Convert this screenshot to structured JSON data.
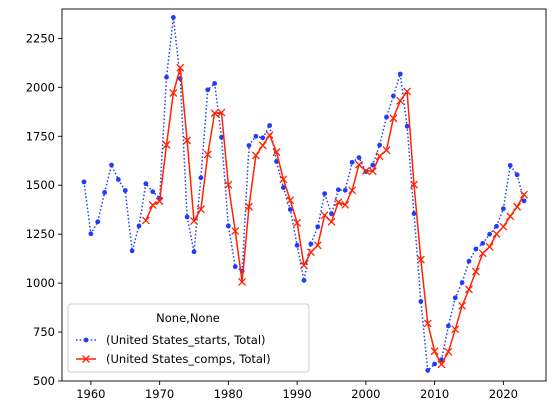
{
  "chart_data": {
    "type": "line",
    "x_ticks": [
      1960,
      1970,
      1980,
      1990,
      2000,
      2010,
      2020
    ],
    "y_ticks": [
      500,
      750,
      1000,
      1250,
      1500,
      1750,
      2000,
      2250
    ],
    "xlim": [
      1955.8,
      2026.2
    ],
    "ylim": [
      500,
      2400
    ],
    "grid": false,
    "legend": {
      "title": "None,None",
      "placement": "lower-left"
    },
    "series": [
      {
        "name": "(United States_starts, Total)",
        "color": "#1f3bff",
        "line_style": "dotted",
        "marker": "dot",
        "x": [
          1959,
          1960,
          1961,
          1962,
          1963,
          1964,
          1965,
          1966,
          1967,
          1968,
          1969,
          1970,
          1971,
          1972,
          1973,
          1974,
          1975,
          1976,
          1977,
          1978,
          1979,
          1980,
          1981,
          1982,
          1983,
          1984,
          1985,
          1986,
          1987,
          1988,
          1989,
          1990,
          1991,
          1992,
          1993,
          1994,
          1995,
          1996,
          1997,
          1998,
          1999,
          2000,
          2001,
          2002,
          2003,
          2004,
          2005,
          2006,
          2007,
          2008,
          2009,
          2010,
          2011,
          2012,
          2013,
          2014,
          2015,
          2016,
          2017,
          2018,
          2019,
          2020,
          2021,
          2022,
          2023
        ],
        "y": [
          1517,
          1252,
          1313,
          1463,
          1603,
          1529,
          1473,
          1165,
          1292,
          1508,
          1467,
          1434,
          2052,
          2357,
          2045,
          1338,
          1160,
          1538,
          1987,
          2020,
          1745,
          1292,
          1084,
          1062,
          1703,
          1750,
          1742,
          1805,
          1621,
          1488,
          1376,
          1193,
          1014,
          1200,
          1288,
          1457,
          1354,
          1477,
          1474,
          1617,
          1641,
          1569,
          1603,
          1705,
          1848,
          1956,
          2068,
          1801,
          1355,
          906,
          554,
          587,
          609,
          781,
          925,
          1003,
          1112,
          1174,
          1203,
          1250,
          1290,
          1380,
          1601,
          1553,
          1420
        ]
      },
      {
        "name": "(United States_comps, Total)",
        "color": "#ff2200",
        "line_style": "solid",
        "marker": "x",
        "x": [
          1968,
          1969,
          1970,
          1971,
          1972,
          1973,
          1974,
          1975,
          1976,
          1977,
          1978,
          1979,
          1980,
          1981,
          1982,
          1983,
          1984,
          1985,
          1986,
          1987,
          1988,
          1989,
          1990,
          1991,
          1992,
          1993,
          1994,
          1995,
          1996,
          1997,
          1998,
          1999,
          2000,
          2001,
          2002,
          2003,
          2004,
          2005,
          2006,
          2007,
          2008,
          2009,
          2010,
          2011,
          2012,
          2013,
          2014,
          2015,
          2016,
          2017,
          2018,
          2019,
          2020,
          2021,
          2022,
          2023
        ],
        "y": [
          1320,
          1399,
          1418,
          1706,
          1971,
          2100,
          1729,
          1317,
          1377,
          1657,
          1868,
          1871,
          1502,
          1266,
          1006,
          1390,
          1652,
          1703,
          1756,
          1669,
          1530,
          1423,
          1308,
          1091,
          1158,
          1193,
          1347,
          1313,
          1413,
          1400,
          1474,
          1605,
          1573,
          1571,
          1648,
          1679,
          1842,
          1931,
          1979,
          1503,
          1120,
          794,
          652,
          585,
          649,
          764,
          884,
          968,
          1059,
          1152,
          1185,
          1251,
          1288,
          1341,
          1390,
          1452
        ]
      }
    ]
  }
}
